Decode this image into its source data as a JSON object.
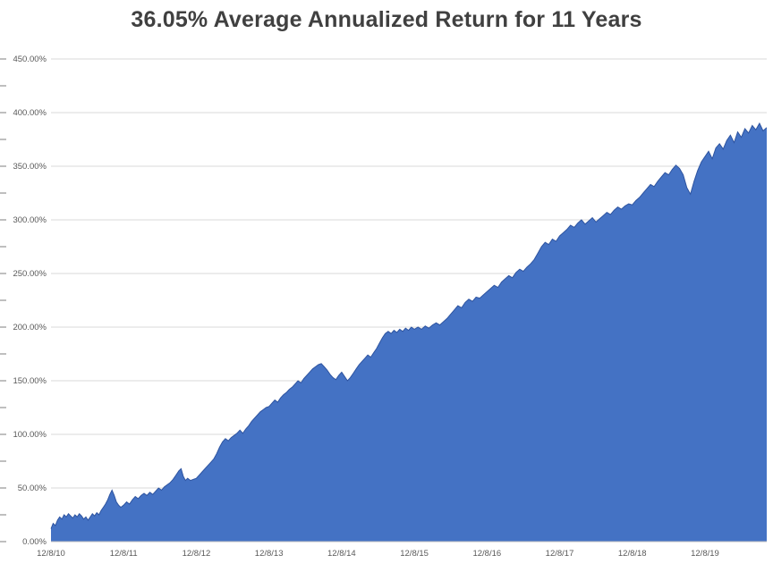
{
  "chart_data": {
    "type": "area",
    "title": "36.05% Average Annualized Return for 11 Years",
    "xlabel": "",
    "ylabel": "",
    "xlim": [
      0,
      9.85
    ],
    "ylim": [
      0,
      450
    ],
    "grid": true,
    "legend": false,
    "ytick_step": 50,
    "ytick_labels": [
      "0.00%",
      "50.00%",
      "100.00%",
      "150.00%",
      "200.00%",
      "250.00%",
      "300.00%",
      "350.00%",
      "400.00%",
      "450.00%"
    ],
    "xtick_positions": [
      0,
      1,
      2,
      3,
      4,
      5,
      6,
      7,
      8,
      9
    ],
    "xtick_labels": [
      "12/8/10",
      "12/8/11",
      "12/8/12",
      "12/8/13",
      "12/8/14",
      "12/8/15",
      "12/8/16",
      "12/8/17",
      "12/8/18",
      "12/8/19"
    ],
    "edge_tick_step": 25,
    "colors": {
      "area_fill": "#4472c4",
      "area_line": "#2e54a0",
      "gridline": "#d9d9d9",
      "axis_line": "#bfbfbf",
      "edge_tick": "#7f7f7f",
      "title_text": "#404040",
      "tick_text": "#595959",
      "background": "#ffffff"
    },
    "series": [
      {
        "name": "Cumulative Return (%)",
        "x_unit": "years since 12/8/10",
        "y_unit": "percent",
        "points": [
          [
            0.0,
            12
          ],
          [
            0.03,
            17
          ],
          [
            0.06,
            15
          ],
          [
            0.09,
            20
          ],
          [
            0.12,
            23
          ],
          [
            0.15,
            21
          ],
          [
            0.18,
            25
          ],
          [
            0.21,
            23
          ],
          [
            0.24,
            26
          ],
          [
            0.27,
            24
          ],
          [
            0.3,
            22
          ],
          [
            0.33,
            25
          ],
          [
            0.36,
            23
          ],
          [
            0.39,
            26
          ],
          [
            0.42,
            24
          ],
          [
            0.45,
            21
          ],
          [
            0.48,
            23
          ],
          [
            0.51,
            20
          ],
          [
            0.54,
            23
          ],
          [
            0.57,
            26
          ],
          [
            0.6,
            24
          ],
          [
            0.63,
            27
          ],
          [
            0.66,
            25
          ],
          [
            0.69,
            29
          ],
          [
            0.72,
            32
          ],
          [
            0.75,
            35
          ],
          [
            0.78,
            39
          ],
          [
            0.81,
            44
          ],
          [
            0.84,
            48
          ],
          [
            0.87,
            43
          ],
          [
            0.9,
            37
          ],
          [
            0.93,
            34
          ],
          [
            0.96,
            32
          ],
          [
            1.0,
            34
          ],
          [
            1.04,
            37
          ],
          [
            1.08,
            35
          ],
          [
            1.12,
            39
          ],
          [
            1.16,
            42
          ],
          [
            1.2,
            40
          ],
          [
            1.24,
            43
          ],
          [
            1.28,
            45
          ],
          [
            1.32,
            43
          ],
          [
            1.36,
            46
          ],
          [
            1.4,
            44
          ],
          [
            1.44,
            47
          ],
          [
            1.48,
            50
          ],
          [
            1.52,
            48
          ],
          [
            1.56,
            51
          ],
          [
            1.6,
            53
          ],
          [
            1.64,
            55
          ],
          [
            1.68,
            58
          ],
          [
            1.72,
            62
          ],
          [
            1.76,
            66
          ],
          [
            1.79,
            68
          ],
          [
            1.82,
            61
          ],
          [
            1.85,
            57
          ],
          [
            1.88,
            59
          ],
          [
            1.92,
            57
          ],
          [
            1.96,
            58
          ],
          [
            2.0,
            59
          ],
          [
            2.04,
            62
          ],
          [
            2.08,
            65
          ],
          [
            2.12,
            68
          ],
          [
            2.16,
            71
          ],
          [
            2.2,
            74
          ],
          [
            2.24,
            77
          ],
          [
            2.28,
            82
          ],
          [
            2.32,
            88
          ],
          [
            2.36,
            93
          ],
          [
            2.4,
            96
          ],
          [
            2.44,
            94
          ],
          [
            2.48,
            97
          ],
          [
            2.52,
            99
          ],
          [
            2.56,
            101
          ],
          [
            2.6,
            104
          ],
          [
            2.64,
            101
          ],
          [
            2.68,
            105
          ],
          [
            2.72,
            108
          ],
          [
            2.76,
            112
          ],
          [
            2.8,
            115
          ],
          [
            2.84,
            118
          ],
          [
            2.88,
            121
          ],
          [
            2.92,
            123
          ],
          [
            2.96,
            125
          ],
          [
            3.0,
            126
          ],
          [
            3.04,
            129
          ],
          [
            3.08,
            132
          ],
          [
            3.12,
            130
          ],
          [
            3.16,
            134
          ],
          [
            3.2,
            137
          ],
          [
            3.24,
            139
          ],
          [
            3.28,
            142
          ],
          [
            3.32,
            144
          ],
          [
            3.36,
            147
          ],
          [
            3.4,
            150
          ],
          [
            3.44,
            148
          ],
          [
            3.48,
            152
          ],
          [
            3.52,
            155
          ],
          [
            3.56,
            158
          ],
          [
            3.6,
            161
          ],
          [
            3.64,
            163
          ],
          [
            3.68,
            165
          ],
          [
            3.72,
            166
          ],
          [
            3.76,
            163
          ],
          [
            3.8,
            160
          ],
          [
            3.84,
            156
          ],
          [
            3.88,
            153
          ],
          [
            3.92,
            151
          ],
          [
            3.96,
            155
          ],
          [
            4.0,
            158
          ],
          [
            4.04,
            154
          ],
          [
            4.08,
            150
          ],
          [
            4.12,
            153
          ],
          [
            4.16,
            157
          ],
          [
            4.2,
            161
          ],
          [
            4.24,
            165
          ],
          [
            4.28,
            168
          ],
          [
            4.32,
            171
          ],
          [
            4.36,
            174
          ],
          [
            4.4,
            172
          ],
          [
            4.44,
            176
          ],
          [
            4.48,
            180
          ],
          [
            4.52,
            185
          ],
          [
            4.56,
            190
          ],
          [
            4.6,
            194
          ],
          [
            4.64,
            196
          ],
          [
            4.68,
            194
          ],
          [
            4.72,
            197
          ],
          [
            4.76,
            195
          ],
          [
            4.8,
            198
          ],
          [
            4.84,
            196
          ],
          [
            4.88,
            199
          ],
          [
            4.92,
            197
          ],
          [
            4.96,
            200
          ],
          [
            5.0,
            198
          ],
          [
            5.05,
            200
          ],
          [
            5.1,
            198
          ],
          [
            5.15,
            201
          ],
          [
            5.2,
            199
          ],
          [
            5.25,
            202
          ],
          [
            5.3,
            204
          ],
          [
            5.35,
            202
          ],
          [
            5.4,
            205
          ],
          [
            5.45,
            208
          ],
          [
            5.5,
            212
          ],
          [
            5.55,
            216
          ],
          [
            5.6,
            220
          ],
          [
            5.65,
            218
          ],
          [
            5.7,
            223
          ],
          [
            5.75,
            226
          ],
          [
            5.8,
            224
          ],
          [
            5.85,
            228
          ],
          [
            5.9,
            227
          ],
          [
            5.95,
            230
          ],
          [
            6.0,
            233
          ],
          [
            6.05,
            236
          ],
          [
            6.1,
            239
          ],
          [
            6.15,
            237
          ],
          [
            6.2,
            242
          ],
          [
            6.25,
            245
          ],
          [
            6.3,
            248
          ],
          [
            6.35,
            246
          ],
          [
            6.4,
            251
          ],
          [
            6.45,
            254
          ],
          [
            6.5,
            252
          ],
          [
            6.55,
            256
          ],
          [
            6.6,
            259
          ],
          [
            6.65,
            263
          ],
          [
            6.7,
            269
          ],
          [
            6.75,
            275
          ],
          [
            6.8,
            279
          ],
          [
            6.85,
            277
          ],
          [
            6.9,
            282
          ],
          [
            6.95,
            280
          ],
          [
            7.0,
            285
          ],
          [
            7.05,
            288
          ],
          [
            7.1,
            291
          ],
          [
            7.15,
            295
          ],
          [
            7.2,
            293
          ],
          [
            7.25,
            297
          ],
          [
            7.3,
            300
          ],
          [
            7.35,
            296
          ],
          [
            7.4,
            299
          ],
          [
            7.45,
            302
          ],
          [
            7.5,
            298
          ],
          [
            7.55,
            301
          ],
          [
            7.6,
            304
          ],
          [
            7.65,
            307
          ],
          [
            7.7,
            305
          ],
          [
            7.75,
            309
          ],
          [
            7.8,
            312
          ],
          [
            7.85,
            310
          ],
          [
            7.9,
            313
          ],
          [
            7.95,
            315
          ],
          [
            8.0,
            314
          ],
          [
            8.05,
            318
          ],
          [
            8.1,
            321
          ],
          [
            8.15,
            325
          ],
          [
            8.2,
            329
          ],
          [
            8.25,
            333
          ],
          [
            8.3,
            331
          ],
          [
            8.35,
            336
          ],
          [
            8.4,
            340
          ],
          [
            8.45,
            344
          ],
          [
            8.5,
            342
          ],
          [
            8.55,
            347
          ],
          [
            8.6,
            351
          ],
          [
            8.65,
            348
          ],
          [
            8.7,
            342
          ],
          [
            8.75,
            330
          ],
          [
            8.8,
            324
          ],
          [
            8.85,
            336
          ],
          [
            8.9,
            346
          ],
          [
            8.95,
            354
          ],
          [
            9.0,
            359
          ],
          [
            9.05,
            364
          ],
          [
            9.1,
            357
          ],
          [
            9.15,
            367
          ],
          [
            9.2,
            371
          ],
          [
            9.25,
            366
          ],
          [
            9.3,
            374
          ],
          [
            9.35,
            379
          ],
          [
            9.4,
            372
          ],
          [
            9.45,
            382
          ],
          [
            9.5,
            377
          ],
          [
            9.55,
            385
          ],
          [
            9.6,
            381
          ],
          [
            9.65,
            388
          ],
          [
            9.7,
            384
          ],
          [
            9.75,
            390
          ],
          [
            9.8,
            383
          ],
          [
            9.85,
            386
          ]
        ]
      }
    ]
  }
}
